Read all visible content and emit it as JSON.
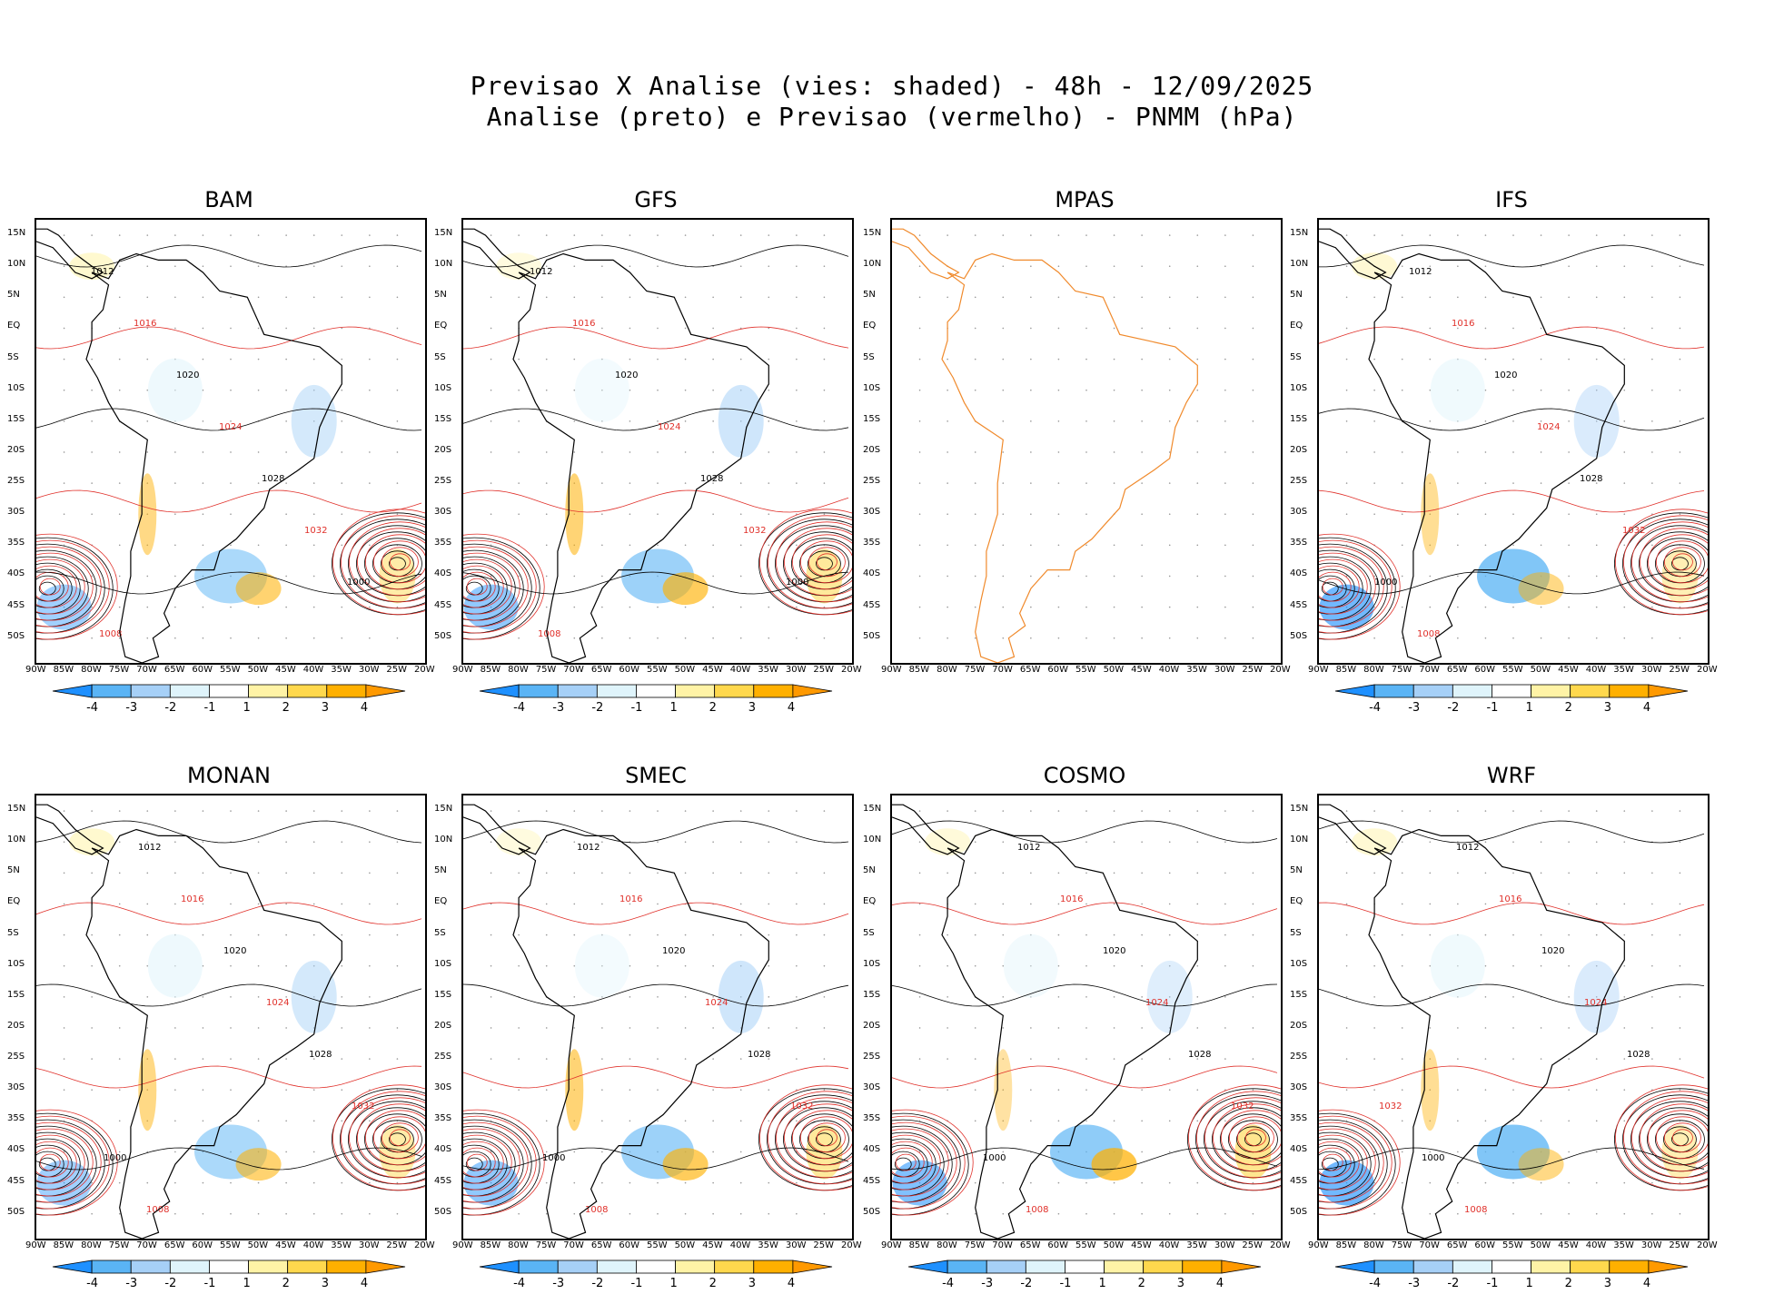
{
  "header": {
    "line1": "Previsao X Analise (vies: shaded) - 48h - 12/09/2025",
    "line2": "Analise (preto) e Previsao (vermelho) - PNMM (hPa)"
  },
  "panels": [
    {
      "name": "BAM",
      "has_data": true
    },
    {
      "name": "GFS",
      "has_data": true
    },
    {
      "name": "MPAS",
      "has_data": false
    },
    {
      "name": "IFS",
      "has_data": true
    },
    {
      "name": "MONAN",
      "has_data": true
    },
    {
      "name": "SMEC",
      "has_data": true
    },
    {
      "name": "COSMO",
      "has_data": true
    },
    {
      "name": "WRF",
      "has_data": true
    }
  ],
  "axes": {
    "lat_labels": [
      "15N",
      "10N",
      "5N",
      "EQ",
      "5S",
      "10S",
      "15S",
      "20S",
      "25S",
      "30S",
      "35S",
      "40S",
      "45S",
      "50S"
    ],
    "lon_labels": [
      "90W",
      "85W",
      "80W",
      "75W",
      "70W",
      "65W",
      "60W",
      "55W",
      "50W",
      "45W",
      "40W",
      "35W",
      "30W",
      "25W",
      "20W"
    ]
  },
  "colorbar": {
    "labels": [
      "-4",
      "-3",
      "-2",
      "-1",
      "1",
      "2",
      "3",
      "4"
    ],
    "colors": [
      "#1e90ff",
      "#5ab4f5",
      "#a6d0f7",
      "#dff4fb",
      "#ffffff",
      "#fff3a6",
      "#ffd84d",
      "#ffb000",
      "#ff9900"
    ]
  },
  "isobar_labels": [
    "1012",
    "1016",
    "1020",
    "1024",
    "1028",
    "1032",
    "1000",
    "1008"
  ],
  "colors": {
    "analysis": "#000000",
    "forecast": "#e0302a",
    "coast_mpas": "#f08a2c"
  }
}
